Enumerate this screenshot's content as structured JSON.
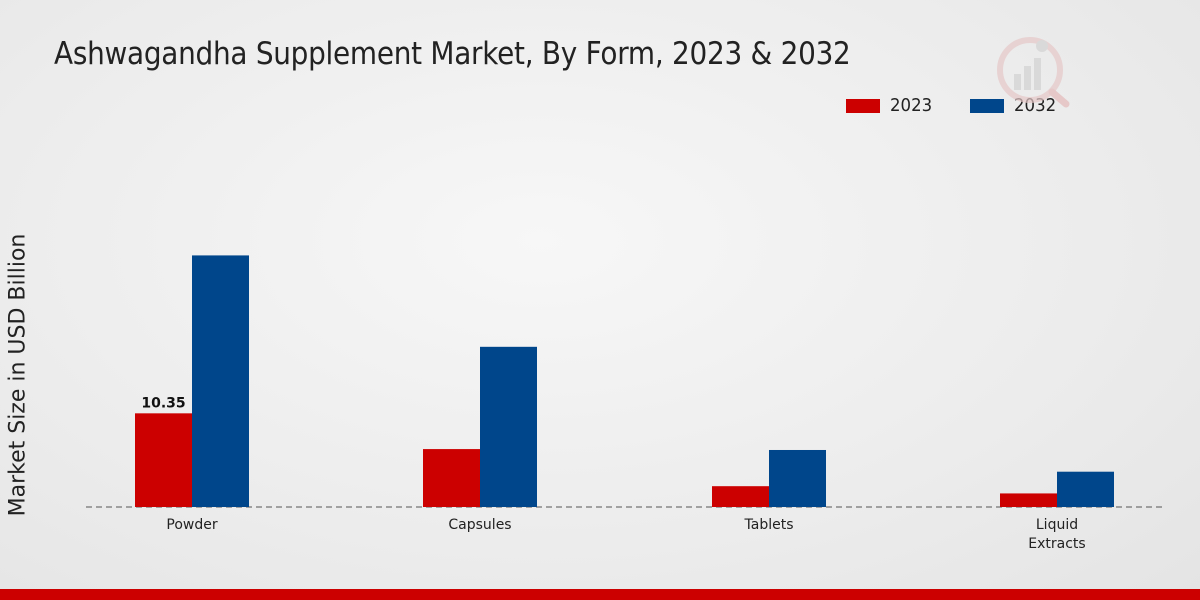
{
  "chart_data": {
    "type": "bar",
    "title": "Ashwagandha Supplement Market, By Form, 2023 & 2032",
    "xlabel": "",
    "ylabel": "Market Size in USD Billion",
    "categories": [
      "Powder",
      "Capsules",
      "Tablets",
      "Liquid Extracts"
    ],
    "category_lines": [
      [
        "Powder"
      ],
      [
        "Capsules"
      ],
      [
        "Tablets"
      ],
      [
        "Liquid",
        "Extracts"
      ]
    ],
    "series": [
      {
        "name": "2023",
        "color": "#cc0000",
        "values": [
          10.35,
          6.4,
          2.3,
          1.5
        ]
      },
      {
        "name": "2032",
        "color": "#00468b",
        "values": [
          27.8,
          17.7,
          6.3,
          3.9
        ]
      }
    ],
    "data_labels": [
      {
        "series": 0,
        "index": 0,
        "text": "10.35"
      }
    ],
    "ylim": [
      0,
      40
    ],
    "grid": false,
    "legend_position": "top-right"
  }
}
